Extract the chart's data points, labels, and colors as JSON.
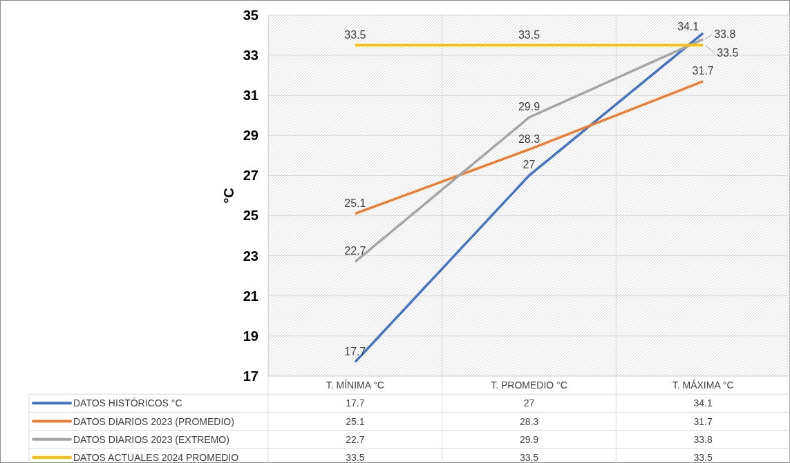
{
  "chart_data": {
    "type": "line",
    "ylabel": "°C",
    "categories": [
      "T.  MÍNIMA °C",
      "T. PROMEDIO °C",
      "T. MÁXIMA °C"
    ],
    "series": [
      {
        "name": "DATOS HISTÓRICOS °C",
        "color": "#4472c4",
        "values": [
          17.7,
          27,
          34.1
        ]
      },
      {
        "name": "DATOS DIARIOS 2023 (PROMEDIO)",
        "color": "#ed7d31",
        "values": [
          25.1,
          28.3,
          31.7
        ]
      },
      {
        "name": "DATOS DIARIOS 2023 (EXTREMO)",
        "color": "#a5a5a5",
        "values": [
          22.7,
          29.9,
          33.8
        ]
      },
      {
        "name": "DATOS ACTUALES 2024 PROMEDIO",
        "color": "#ffc000",
        "values": [
          33.5,
          33.5,
          33.5
        ]
      }
    ],
    "annotations": [
      {
        "text": "17.7",
        "x": "T.  MÍNIMA °C",
        "y": 17.7
      },
      {
        "text": "27",
        "x": "T. PROMEDIO °C",
        "y": 27
      },
      {
        "text": "34.1",
        "x": "T. MÁXIMA °C",
        "y": 34.1
      },
      {
        "text": "25.1",
        "x": "T.  MÍNIMA °C",
        "y": 25.1
      },
      {
        "text": "28.3",
        "x": "T. PROMEDIO °C",
        "y": 28.3
      },
      {
        "text": "31.7",
        "x": "T. MÁXIMA °C",
        "y": 31.7
      },
      {
        "text": "22.7",
        "x": "T.  MÍNIMA °C",
        "y": 22.7
      },
      {
        "text": "29.9",
        "x": "T. PROMEDIO °C",
        "y": 29.9
      },
      {
        "text": "33.8",
        "x": "T. MÁXIMA °C",
        "y": 33.8
      },
      {
        "text": "33.5",
        "x": "T.  MÍNIMA °C",
        "y": 33.5
      },
      {
        "text": "33.5",
        "x": "T. PROMEDIO °C",
        "y": 33.5
      },
      {
        "text": "33.5",
        "x": "T. MÁXIMA °C",
        "y": 33.5
      }
    ],
    "ylim": [
      17,
      35
    ],
    "yticks": [
      17,
      19,
      21,
      23,
      25,
      27,
      29,
      31,
      33,
      35
    ],
    "grid": "y",
    "data_labels": true,
    "legend": "bottom",
    "marker": "none",
    "line_style": "solid"
  }
}
